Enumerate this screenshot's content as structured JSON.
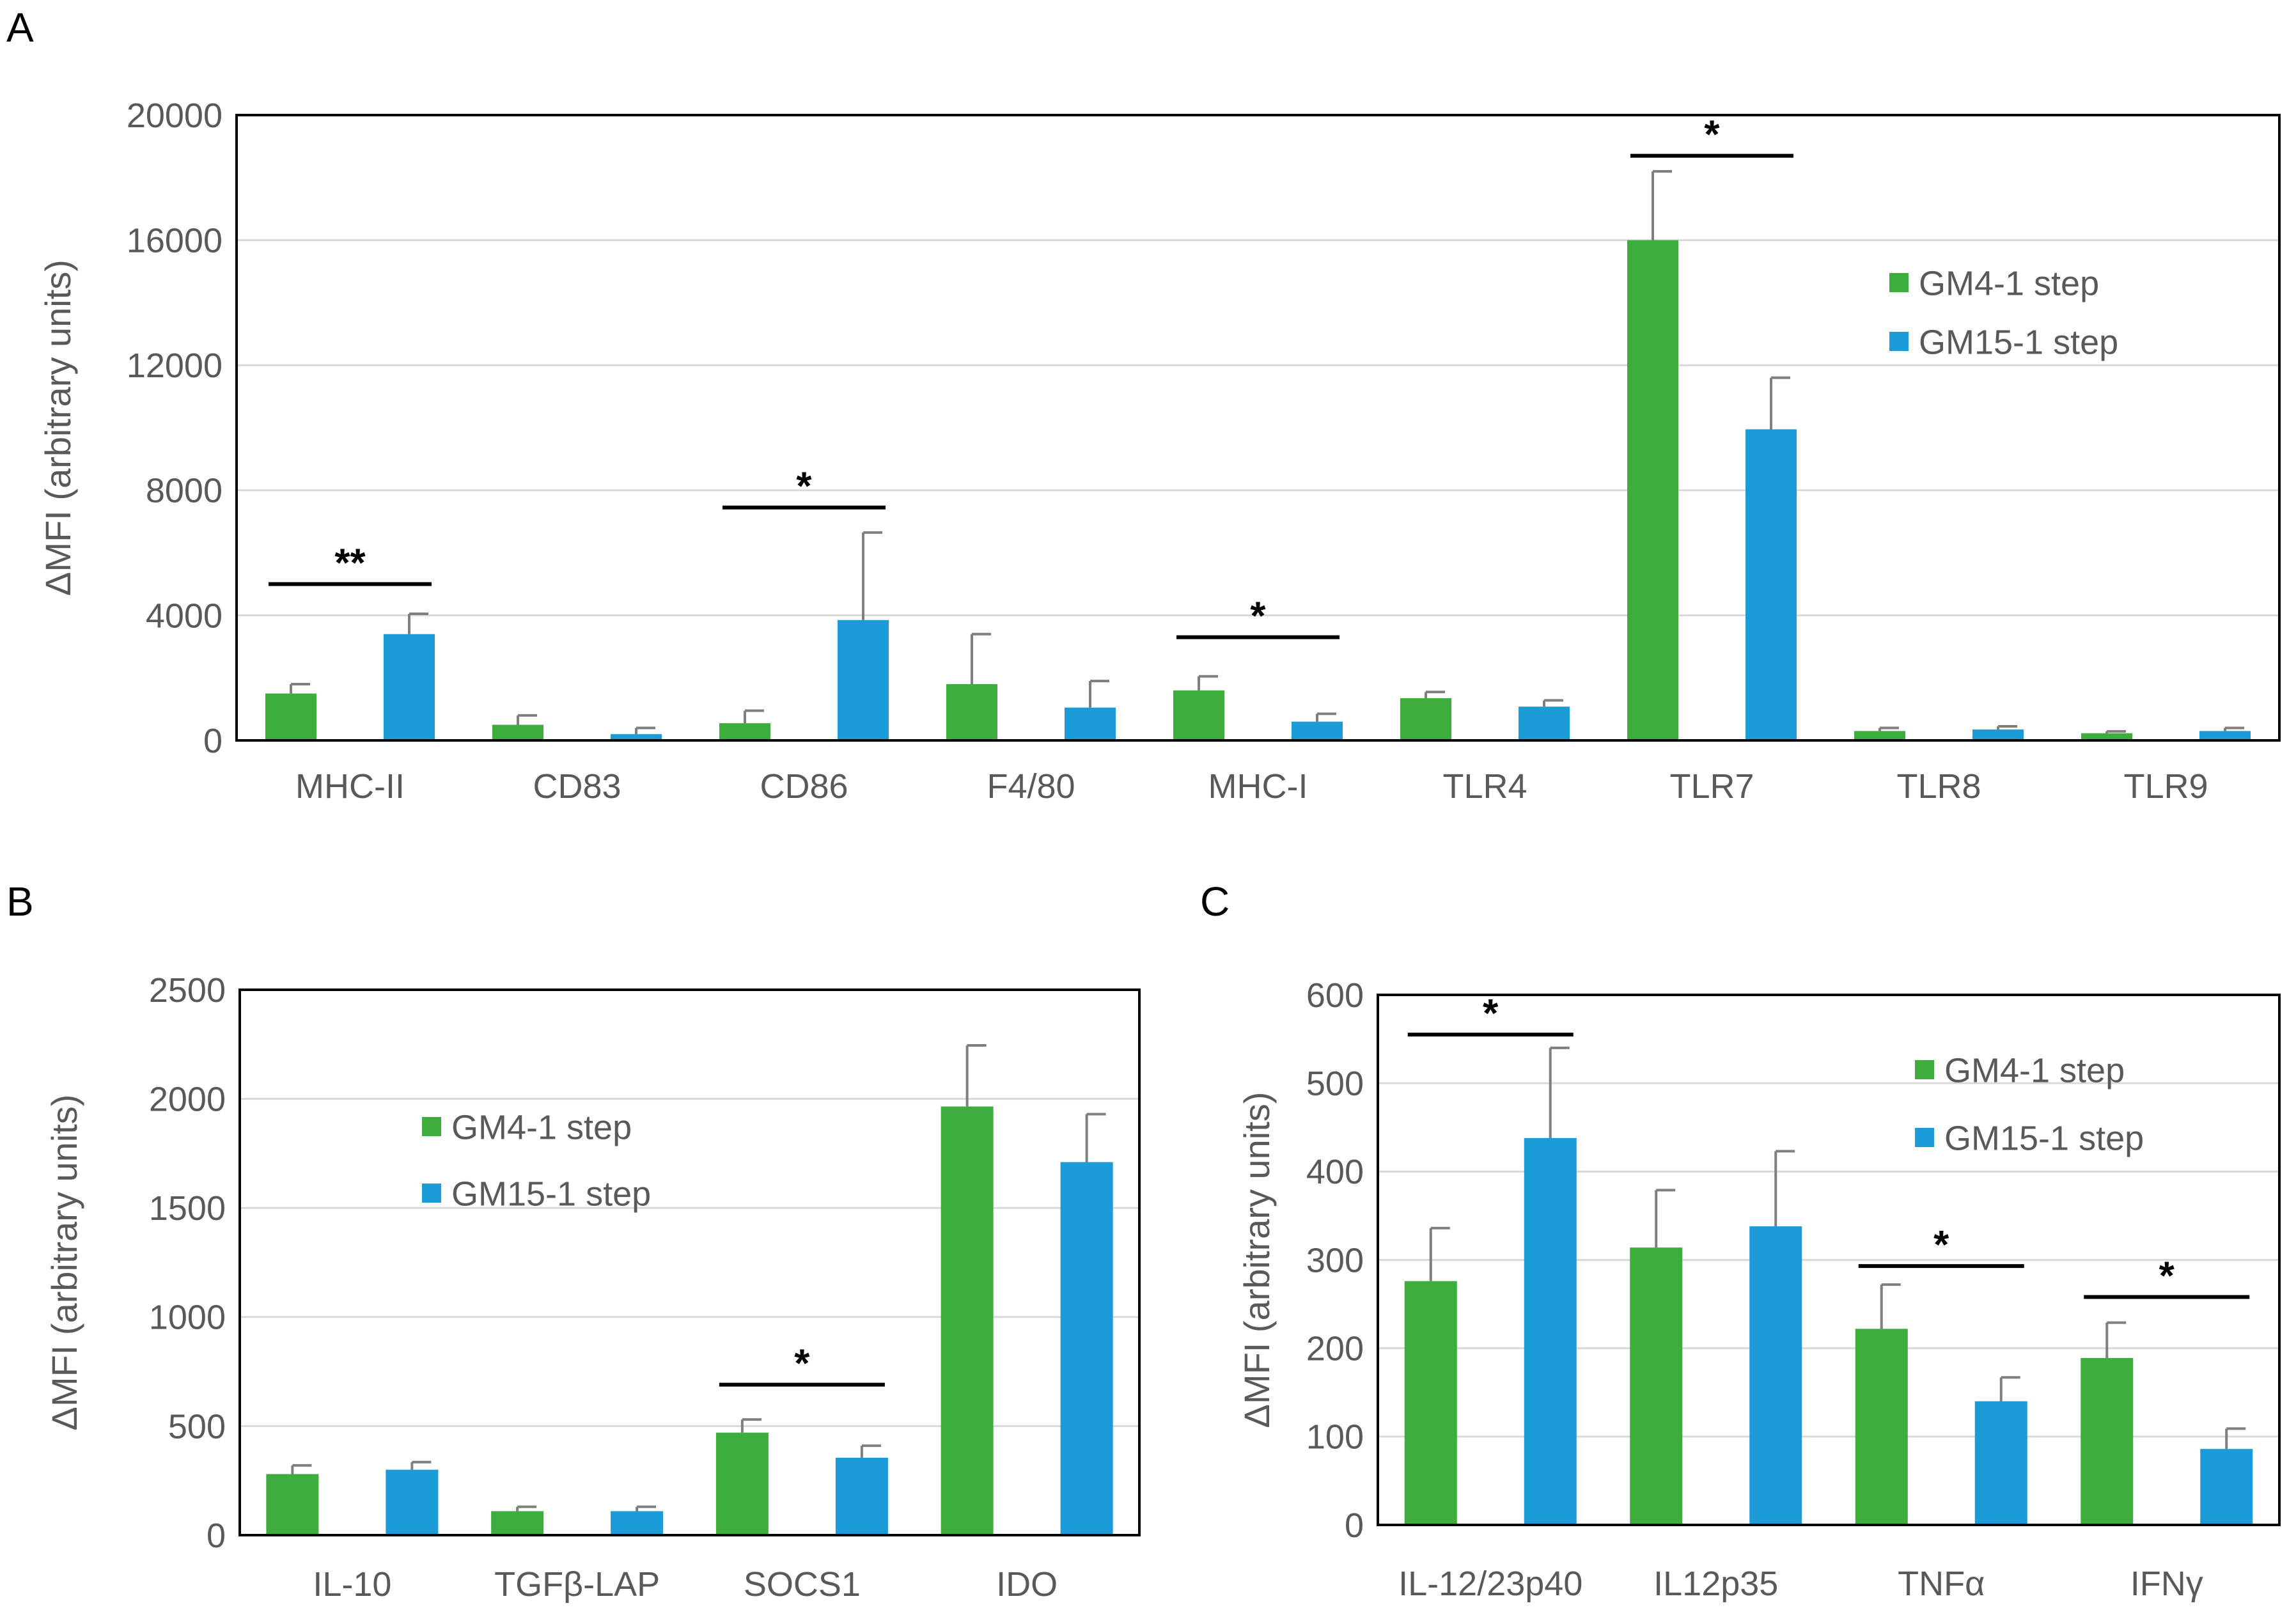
{
  "colors": {
    "green": "#3DAE3D",
    "blue": "#1B9BD7",
    "grid": "#D9D9D9",
    "axis": "#000000",
    "text": "#595959",
    "error": "#7F7F7F"
  },
  "chart_data": [
    {
      "panel": "A",
      "type": "bar",
      "ylabel": "ΔMFI (arbitrary units)",
      "ylim": [
        0,
        20000
      ],
      "yticks": [
        0,
        4000,
        8000,
        12000,
        16000,
        20000
      ],
      "grid": true,
      "legend_position": "top-right",
      "categories": [
        "MHC-II",
        "CD83",
        "CD86",
        "F4/80",
        "MHC-I",
        "TLR4",
        "TLR7",
        "TLR8",
        "TLR9"
      ],
      "series": [
        {
          "name": "GM4-1 step",
          "values": [
            1500,
            500,
            550,
            1800,
            1600,
            1350,
            16000,
            300,
            230
          ],
          "errors": [
            300,
            300,
            400,
            1600,
            450,
            200,
            2200,
            100,
            60
          ]
        },
        {
          "name": "GM15-1 step",
          "values": [
            3400,
            200,
            3850,
            1050,
            600,
            1080,
            9950,
            350,
            300
          ],
          "errors": [
            650,
            200,
            2800,
            850,
            250,
            200,
            1650,
            100,
            100
          ]
        }
      ],
      "significance": [
        {
          "category": "MHC-II",
          "label": "**",
          "y": 5000
        },
        {
          "category": "CD86",
          "label": "*",
          "y": 7450
        },
        {
          "category": "MHC-I",
          "label": "*",
          "y": 3300
        },
        {
          "category": "TLR7",
          "label": "*",
          "y": 18700
        }
      ]
    },
    {
      "panel": "B",
      "type": "bar",
      "ylabel": "ΔMFI (arbitrary units)",
      "ylim": [
        0,
        2500
      ],
      "yticks": [
        0,
        500,
        1000,
        1500,
        2000,
        2500
      ],
      "grid": true,
      "legend_position": "top-center",
      "categories": [
        "IL-10",
        "TGFβ-LAP",
        "SOCS1",
        "IDO"
      ],
      "series": [
        {
          "name": "GM4-1 step",
          "values": [
            280,
            110,
            470,
            1965
          ],
          "errors": [
            40,
            20,
            60,
            280
          ]
        },
        {
          "name": "GM15-1 step",
          "values": [
            300,
            110,
            355,
            1710
          ],
          "errors": [
            35,
            20,
            55,
            220
          ]
        }
      ],
      "significance": [
        {
          "category": "SOCS1",
          "label": "*",
          "y": 690
        }
      ]
    },
    {
      "panel": "C",
      "type": "bar",
      "ylabel": "ΔMFI (arbitrary units)",
      "ylim": [
        0,
        600
      ],
      "yticks": [
        0,
        100,
        200,
        300,
        400,
        500,
        600
      ],
      "grid": true,
      "legend_position": "top-right",
      "categories": [
        "IL-12/23p40",
        "IL12p35",
        "TNFα",
        "IFNγ"
      ],
      "series": [
        {
          "name": "GM4-1 step",
          "values": [
            276,
            314,
            222,
            189
          ],
          "errors": [
            60,
            65,
            50,
            40
          ]
        },
        {
          "name": "GM15-1 step",
          "values": [
            438,
            338,
            140,
            86
          ],
          "errors": [
            102,
            85,
            27,
            23
          ]
        }
      ],
      "significance": [
        {
          "category": "IL-12/23p40",
          "label": "*",
          "y": 555
        },
        {
          "category": "TNFα",
          "label": "*",
          "y": 293
        },
        {
          "category": "IFNγ",
          "label": "*",
          "y": 258
        }
      ]
    }
  ]
}
